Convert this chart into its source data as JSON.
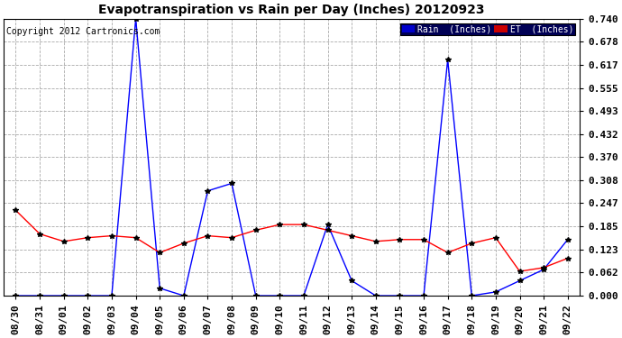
{
  "title": "Evapotranspiration vs Rain per Day (Inches) 20120923",
  "copyright": "Copyright 2012 Cartronics.com",
  "x_labels": [
    "08/30",
    "08/31",
    "09/01",
    "09/02",
    "09/03",
    "09/04",
    "09/05",
    "09/06",
    "09/07",
    "09/08",
    "09/09",
    "09/10",
    "09/11",
    "09/12",
    "09/13",
    "09/14",
    "09/15",
    "09/16",
    "09/17",
    "09/18",
    "09/19",
    "09/20",
    "09/21",
    "09/22"
  ],
  "rain_values": [
    0.0,
    0.0,
    0.0,
    0.0,
    0.0,
    0.74,
    0.02,
    0.0,
    0.28,
    0.3,
    0.0,
    0.0,
    0.0,
    0.19,
    0.04,
    0.0,
    0.0,
    0.0,
    0.63,
    0.0,
    0.01,
    0.04,
    0.07,
    0.15
  ],
  "et_values": [
    0.228,
    0.165,
    0.145,
    0.155,
    0.16,
    0.155,
    0.115,
    0.14,
    0.16,
    0.155,
    0.175,
    0.19,
    0.19,
    0.175,
    0.16,
    0.145,
    0.15,
    0.15,
    0.115,
    0.14,
    0.155,
    0.065,
    0.075,
    0.1
  ],
  "rain_color": "#0000ff",
  "et_color": "#ff0000",
  "bg_color": "#ffffff",
  "grid_color": "#aaaaaa",
  "yticks": [
    0.0,
    0.062,
    0.123,
    0.185,
    0.247,
    0.308,
    0.37,
    0.432,
    0.493,
    0.555,
    0.617,
    0.678,
    0.74
  ],
  "ylim": [
    0.0,
    0.74
  ],
  "legend_rain_label": "Rain  (Inches)",
  "legend_et_label": "ET  (Inches)",
  "legend_rain_bg": "#0000cc",
  "legend_et_bg": "#cc0000",
  "title_fontsize": 10,
  "copyright_fontsize": 7,
  "tick_fontsize": 8
}
